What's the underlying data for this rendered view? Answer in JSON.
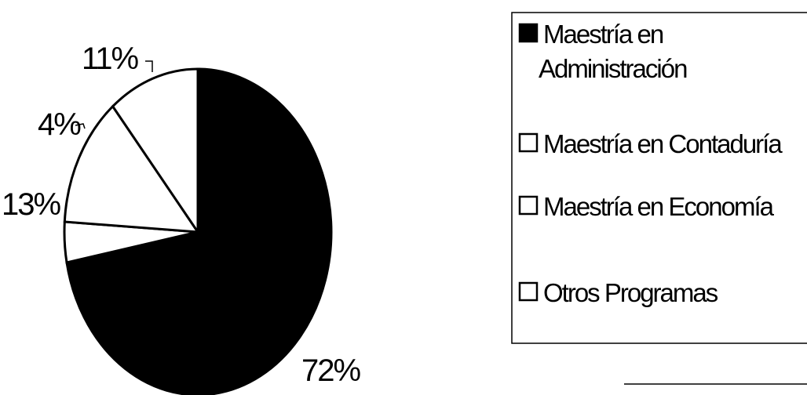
{
  "chart_data": {
    "type": "pie",
    "categories": [
      "Maestría en Administración",
      "Maestría en Contaduría",
      "Maestría en Economía",
      "Otros Programas"
    ],
    "values": [
      72,
      4,
      13,
      11
    ],
    "labels": [
      "72%",
      "4%",
      "13%",
      "11%"
    ],
    "colors": [
      "#000000",
      "#ffffff",
      "#ffffff",
      "#ffffff"
    ],
    "legend": {
      "placement": "right",
      "entries": [
        {
          "lines": [
            "Maestría en",
            "Administración"
          ],
          "fill": "#000000"
        },
        {
          "lines": [
            "Maestría en Contaduría"
          ],
          "fill": "#ffffff"
        },
        {
          "lines": [
            "Maestría en Economía"
          ],
          "fill": "#ffffff"
        },
        {
          "lines": [
            "Otros Programas"
          ],
          "fill": "#ffffff"
        }
      ]
    }
  }
}
